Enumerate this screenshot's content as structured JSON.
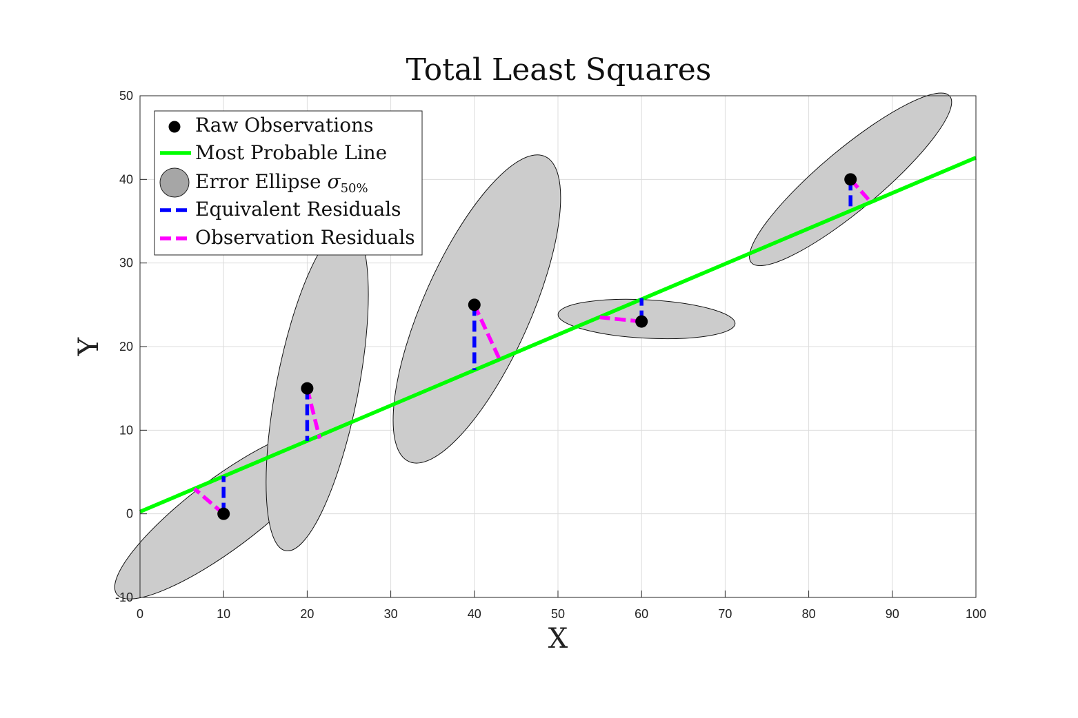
{
  "chart_data": {
    "type": "scatter",
    "title": "Total Least Squares",
    "xlabel": "X",
    "ylabel": "Y",
    "xlim": [
      0,
      100
    ],
    "ylim": [
      -10,
      50
    ],
    "xticks": [
      0,
      10,
      20,
      30,
      40,
      50,
      60,
      70,
      80,
      90,
      100
    ],
    "yticks": [
      -10,
      0,
      10,
      20,
      30,
      40,
      50
    ],
    "grid": true,
    "legend_position": "top-left",
    "legend": {
      "raw": "Raw Observations",
      "line": "Most Probable Line",
      "ellipse": "Error Ellipse",
      "ellipse_symbol": "σ",
      "ellipse_subscript": "50%",
      "equiv": "Equivalent Residuals",
      "obs": "Observation Residuals"
    },
    "colors": {
      "line": "#00ff00",
      "equivalent_residuals": "#0000ff",
      "observation_residuals": "#ff00ff",
      "points": "#000000",
      "ellipse_fill": "#cccccc",
      "legend_ellipse_fill": "#a6a6a6"
    },
    "most_probable_line": {
      "x": [
        0,
        100
      ],
      "y": [
        0.25,
        42.6
      ]
    },
    "observations": [
      {
        "x": 10,
        "y": 0,
        "ellipse": {
          "cx": 10,
          "cy": 0,
          "a": 16.0,
          "b": 4.2,
          "angle_deg": -37
        },
        "equivalent_to": {
          "x": 10,
          "y": 4.5
        },
        "observation_to": {
          "x": 6.5,
          "y": 3.0
        }
      },
      {
        "x": 20,
        "y": 15,
        "ellipse": {
          "cx": 21.2,
          "cy": 15.0,
          "a": 19.8,
          "b": 4.9,
          "angle_deg": -79
        },
        "equivalent_to": {
          "x": 20,
          "y": 8.7
        },
        "observation_to": {
          "x": 21.5,
          "y": 9.0
        }
      },
      {
        "x": 40,
        "y": 25,
        "ellipse": {
          "cx": 40.3,
          "cy": 24.5,
          "a": 20.0,
          "b": 6.4,
          "angle_deg": -66
        },
        "equivalent_to": {
          "x": 40,
          "y": 17.2
        },
        "observation_to": {
          "x": 43.0,
          "y": 18.5
        }
      },
      {
        "x": 60,
        "y": 23,
        "ellipse": {
          "cx": 60.6,
          "cy": 23.3,
          "a": 10.6,
          "b": 2.3,
          "angle_deg": 3
        },
        "equivalent_to": {
          "x": 60,
          "y": 25.8
        },
        "observation_to": {
          "x": 55.0,
          "y": 23.5
        }
      },
      {
        "x": 85,
        "y": 40,
        "ellipse": {
          "cx": 85.0,
          "cy": 40.0,
          "a": 15.5,
          "b": 3.6,
          "angle_deg": -40
        },
        "equivalent_to": {
          "x": 85,
          "y": 36.3
        },
        "observation_to": {
          "x": 87.5,
          "y": 37.2
        }
      }
    ]
  }
}
